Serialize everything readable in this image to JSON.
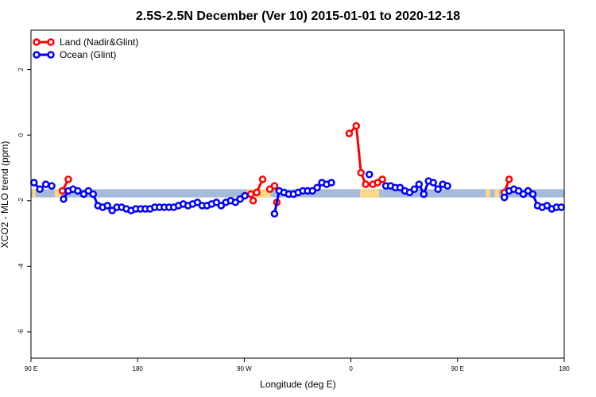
{
  "chart_data": {
    "type": "line",
    "title": "2.5S-2.5N December (Ver 10)   2015-01-01 to 2020-12-18",
    "xlabel": "Longitude (deg E)",
    "ylabel": "XCO2 - MLO trend (ppm)",
    "xlim": [
      90,
      450
    ],
    "ylim": [
      -6.8,
      3.2
    ],
    "x_ticks": [
      {
        "value": 90,
        "label": "90 E"
      },
      {
        "value": 162,
        "label": "180"
      },
      {
        "value": 234,
        "label": "90 W"
      },
      {
        "value": 306,
        "label": "0"
      },
      {
        "value": 378,
        "label": "90 E"
      },
      {
        "value": 450,
        "label": "180"
      }
    ],
    "y_ticks": [
      {
        "value": 2,
        "label": "2"
      },
      {
        "value": 0,
        "label": "0"
      },
      {
        "value": -2,
        "label": "-2"
      },
      {
        "value": -4,
        "label": "-4"
      },
      {
        "value": -6,
        "label": "-6"
      }
    ],
    "grid": false,
    "legend_position": "top-left",
    "band": {
      "ymin": -1.9,
      "ymax": -1.65,
      "ocean_color": "#a4bbdb",
      "land_color": "#fcd882"
    },
    "land_segments": [
      [
        91,
        93
      ],
      [
        106,
        111
      ],
      [
        236,
        252
      ],
      [
        312,
        325
      ],
      [
        397,
        400
      ],
      [
        403,
        406
      ]
    ],
    "series": [
      {
        "name": "Land (Nadir&Glint)",
        "color": "#ff0000",
        "segments": [
          [
            [
              111.2,
              -1.7
            ],
            [
              115.2,
              -1.35
            ]
          ],
          [
            [
              238.4,
              -1.8
            ],
            [
              240.0,
              -2.0
            ]
          ],
          [
            [
              242.4,
              -1.75
            ],
            [
              246.4,
              -1.35
            ]
          ],
          [
            [
              251.2,
              -1.65
            ],
            [
              254.4,
              -1.55
            ]
          ],
          [
            [
              256.0,
              -2.05
            ]
          ],
          [
            [
              304.8,
              0.05
            ],
            [
              309.6,
              0.28
            ],
            [
              312.8,
              -1.15
            ],
            [
              316.0,
              -1.5
            ],
            [
              320.8,
              -1.5
            ]
          ],
          [
            [
              324.0,
              -1.45
            ],
            [
              327.2,
              -1.35
            ]
          ],
          [
            [
              409.6,
              -1.75
            ],
            [
              412.8,
              -1.35
            ]
          ]
        ]
      },
      {
        "name": "Ocean (Glint)",
        "color": "#0000ff",
        "segments": [
          [
            [
              92.0,
              -1.45
            ],
            [
              96.0,
              -1.65
            ],
            [
              100.0,
              -1.5
            ],
            [
              104.0,
              -1.55
            ]
          ],
          [
            [
              112.0,
              -1.95
            ],
            [
              115.2,
              -1.7
            ],
            [
              118.4,
              -1.65
            ],
            [
              121.6,
              -1.7
            ],
            [
              125.6,
              -1.8
            ],
            [
              128.8,
              -1.7
            ],
            [
              132.0,
              -1.8
            ],
            [
              135.2,
              -2.15
            ],
            [
              138.4,
              -2.2
            ],
            [
              141.6,
              -2.15
            ],
            [
              144.8,
              -2.3
            ],
            [
              148.0,
              -2.2
            ],
            [
              151.2,
              -2.2
            ],
            [
              154.4,
              -2.25
            ],
            [
              157.6,
              -2.3
            ],
            [
              160.8,
              -2.25
            ],
            [
              164.0,
              -2.25
            ],
            [
              167.2,
              -2.25
            ],
            [
              170.4,
              -2.25
            ],
            [
              173.6,
              -2.2
            ],
            [
              176.8,
              -2.2
            ],
            [
              180.0,
              -2.2
            ],
            [
              183.2,
              -2.2
            ],
            [
              186.4,
              -2.2
            ],
            [
              189.6,
              -2.15
            ],
            [
              192.8,
              -2.1
            ],
            [
              196.0,
              -2.15
            ],
            [
              199.2,
              -2.1
            ],
            [
              202.4,
              -2.05
            ],
            [
              205.6,
              -2.15
            ],
            [
              208.8,
              -2.15
            ],
            [
              212.0,
              -2.1
            ],
            [
              215.2,
              -2.05
            ],
            [
              218.4,
              -2.15
            ],
            [
              221.6,
              -2.05
            ],
            [
              224.8,
              -2.0
            ],
            [
              228.0,
              -2.05
            ],
            [
              231.2,
              -1.95
            ],
            [
              234.4,
              -1.85
            ]
          ],
          [
            [
              254.4,
              -2.4
            ],
            [
              257.6,
              -1.7
            ],
            [
              260.8,
              -1.75
            ],
            [
              264.0,
              -1.8
            ],
            [
              267.2,
              -1.8
            ],
            [
              270.4,
              -1.75
            ],
            [
              273.6,
              -1.7
            ],
            [
              276.8,
              -1.7
            ],
            [
              280.0,
              -1.7
            ],
            [
              283.2,
              -1.6
            ],
            [
              286.4,
              -1.45
            ],
            [
              289.6,
              -1.5
            ],
            [
              292.8,
              -1.45
            ]
          ],
          [
            [
              318.4,
              -1.2
            ]
          ],
          [
            [
              329.6,
              -1.55
            ],
            [
              332.8,
              -1.55
            ],
            [
              336.0,
              -1.6
            ],
            [
              339.2,
              -1.6
            ],
            [
              342.4,
              -1.7
            ],
            [
              345.6,
              -1.75
            ],
            [
              348.8,
              -1.65
            ],
            [
              352.0,
              -1.5
            ],
            [
              355.2,
              -1.8
            ],
            [
              358.4,
              -1.4
            ],
            [
              361.6,
              -1.45
            ],
            [
              364.8,
              -1.65
            ],
            [
              368.0,
              -1.5
            ],
            [
              371.2,
              -1.55
            ]
          ],
          [
            [
              409.6,
              -1.9
            ],
            [
              412.8,
              -1.7
            ],
            [
              416.0,
              -1.65
            ],
            [
              419.2,
              -1.7
            ],
            [
              422.4,
              -1.8
            ],
            [
              425.6,
              -1.7
            ],
            [
              428.8,
              -1.8
            ],
            [
              432.0,
              -2.15
            ],
            [
              435.2,
              -2.2
            ],
            [
              438.4,
              -2.15
            ],
            [
              441.6,
              -2.25
            ],
            [
              444.8,
              -2.2
            ],
            [
              448.0,
              -2.2
            ]
          ]
        ]
      }
    ]
  }
}
